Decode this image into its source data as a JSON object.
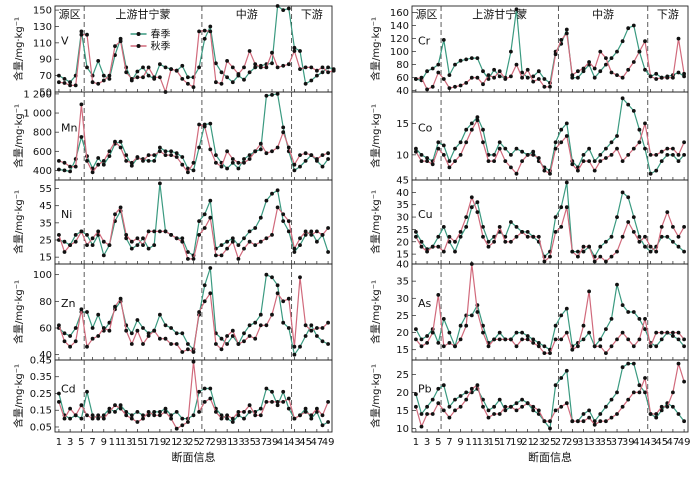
{
  "chart_data": {
    "type": "line",
    "x_ticks": [
      1,
      3,
      5,
      7,
      9,
      11,
      13,
      15,
      17,
      19,
      21,
      23,
      25,
      27,
      29,
      31,
      33,
      35,
      37,
      39,
      41,
      43,
      45,
      47,
      49
    ],
    "x_label": "断面信息",
    "regions": [
      "源区",
      "上游甘宁蒙",
      "中游",
      "下游"
    ],
    "region_dividers": [
      5.5,
      26.5,
      42.5
    ],
    "series_names": [
      "春季",
      "秋季"
    ],
    "colors": {
      "spring": "#3a9a80",
      "autumn": "#d16a7c"
    },
    "panels": [
      {
        "label": "V",
        "column": "left",
        "ylabel": "含量/mg·kg⁻¹",
        "ylim": [
          50,
          155
        ],
        "yticks": [
          50,
          70,
          90,
          110,
          130,
          150
        ],
        "spring": [
          70,
          66,
          62,
          70,
          124,
          80,
          70,
          88,
          70,
          66,
          95,
          115,
          80,
          64,
          75,
          80,
          70,
          66,
          84,
          80,
          78,
          76,
          82,
          68,
          68,
          80,
          115,
          130,
          85,
          74,
          68,
          62,
          70,
          65,
          74,
          80,
          82,
          84,
          85,
          155,
          150,
          152,
          104,
          100,
          60,
          64,
          70,
          74,
          80,
          78
        ],
        "autumn": [
          62,
          61,
          58,
          58,
          120,
          120,
          62,
          60,
          64,
          70,
          106,
          112,
          74,
          66,
          68,
          68,
          80,
          68,
          68,
          50,
          78,
          76,
          66,
          60,
          56,
          124,
          125,
          124,
          62,
          60,
          88,
          80,
          72,
          80,
          100,
          84,
          80,
          80,
          98,
          80,
          82,
          84,
          100,
          78,
          80,
          80,
          76,
          80,
          74,
          76
        ]
      },
      {
        "label": "Mn",
        "column": "left",
        "ylabel": "含量/mg·kg⁻¹",
        "ylim": [
          300,
          1220
        ],
        "yticks": [
          400,
          600,
          800,
          1000,
          1200
        ],
        "spring": [
          410,
          400,
          390,
          520,
          750,
          550,
          420,
          530,
          460,
          550,
          680,
          700,
          560,
          450,
          530,
          520,
          500,
          500,
          640,
          600,
          600,
          580,
          540,
          420,
          400,
          640,
          880,
          890,
          560,
          480,
          420,
          480,
          420,
          520,
          560,
          600,
          620,
          1180,
          1190,
          1200,
          850,
          600,
          400,
          440,
          500,
          560,
          500,
          440,
          520
        ],
        "autumn": [
          500,
          480,
          440,
          440,
          1090,
          500,
          380,
          460,
          500,
          600,
          700,
          640,
          500,
          480,
          540,
          500,
          560,
          560,
          600,
          560,
          560,
          540,
          460,
          380,
          480,
          880,
          860,
          620,
          480,
          440,
          600,
          520,
          480,
          480,
          520,
          600,
          680,
          580,
          600,
          640,
          800,
          640,
          460,
          560,
          580,
          560,
          520,
          560,
          580
        ]
      },
      {
        "label": "Ni",
        "column": "left",
        "ylabel": "含量/mg·kg⁻¹",
        "ylim": [
          11,
          60
        ],
        "yticks": [
          15,
          25,
          35,
          45,
          55
        ],
        "spring": [
          25,
          24,
          22,
          28,
          30,
          28,
          22,
          28,
          16,
          22,
          36,
          42,
          26,
          20,
          22,
          26,
          20,
          22,
          58,
          30,
          28,
          26,
          26,
          18,
          16,
          36,
          40,
          48,
          20,
          22,
          24,
          26,
          22,
          26,
          30,
          32,
          38,
          48,
          52,
          54,
          36,
          30,
          18,
          22,
          28,
          30,
          24,
          28,
          18
        ],
        "autumn": [
          28,
          18,
          22,
          24,
          30,
          22,
          26,
          30,
          24,
          22,
          40,
          44,
          28,
          24,
          26,
          22,
          30,
          30,
          30,
          30,
          28,
          26,
          24,
          14,
          14,
          28,
          32,
          38,
          16,
          16,
          20,
          24,
          14,
          20,
          24,
          22,
          24,
          26,
          28,
          44,
          40,
          36,
          20,
          26,
          30,
          28,
          30,
          28,
          32
        ]
      },
      {
        "label": "Zn",
        "column": "left",
        "ylabel": "含量/mg·kg⁻¹",
        "ylim": [
          36,
          108
        ],
        "yticks": [
          40,
          60,
          80,
          100
        ],
        "spring": [
          60,
          56,
          54,
          60,
          72,
          72,
          60,
          70,
          58,
          64,
          74,
          80,
          62,
          56,
          66,
          60,
          56,
          58,
          70,
          62,
          60,
          56,
          56,
          48,
          44,
          70,
          92,
          105,
          56,
          52,
          48,
          54,
          48,
          56,
          62,
          64,
          70,
          100,
          98,
          92,
          64,
          60,
          40,
          46,
          54,
          62,
          54,
          50,
          48
        ],
        "autumn": [
          62,
          50,
          46,
          50,
          74,
          46,
          52,
          54,
          60,
          58,
          76,
          82,
          58,
          48,
          58,
          48,
          54,
          58,
          52,
          52,
          48,
          48,
          42,
          44,
          42,
          72,
          80,
          86,
          48,
          44,
          54,
          58,
          48,
          50,
          54,
          52,
          62,
          62,
          70,
          86,
          80,
          82,
          46,
          98,
          62,
          58,
          60,
          60,
          64
        ]
      },
      {
        "label": "Cd",
        "column": "left",
        "ylabel": "含量/mg·kg⁻¹",
        "ylim": [
          0.02,
          0.45
        ],
        "yticks": [
          0.05,
          0.15,
          0.25,
          0.35,
          0.45
        ],
        "spring": [
          0.25,
          0.12,
          0.1,
          0.12,
          0.1,
          0.26,
          0.12,
          0.1,
          0.12,
          0.16,
          0.14,
          0.18,
          0.14,
          0.12,
          0.14,
          0.12,
          0.12,
          0.14,
          0.14,
          0.16,
          0.12,
          0.14,
          0.1,
          0.1,
          0.12,
          0.26,
          0.28,
          0.28,
          0.16,
          0.12,
          0.1,
          0.08,
          0.12,
          0.1,
          0.14,
          0.14,
          0.16,
          0.28,
          0.26,
          0.18,
          0.26,
          0.16,
          0.1,
          0.12,
          0.16,
          0.1,
          0.14,
          0.06,
          0.08
        ],
        "autumn": [
          0.2,
          0.1,
          0.16,
          0.12,
          0.18,
          0.12,
          0.1,
          0.12,
          0.1,
          0.14,
          0.18,
          0.16,
          0.12,
          0.1,
          0.08,
          0.1,
          0.14,
          0.12,
          0.12,
          0.14,
          0.1,
          0.04,
          0.06,
          0.08,
          0.44,
          0.14,
          0.2,
          0.22,
          0.14,
          0.1,
          0.12,
          0.1,
          0.14,
          0.14,
          0.18,
          0.12,
          0.12,
          0.2,
          0.2,
          0.2,
          0.2,
          0.22,
          0.1,
          0.12,
          0.14,
          0.12,
          0.16,
          0.12,
          0.2
        ]
      },
      {
        "label": "Cr",
        "column": "right",
        "ylabel": "含量/mg·kg⁻¹",
        "ylim": [
          38,
          170
        ],
        "yticks": [
          40,
          60,
          80,
          100,
          120,
          140,
          160
        ],
        "spring": [
          58,
          56,
          70,
          74,
          80,
          118,
          64,
          80,
          86,
          88,
          90,
          90,
          70,
          58,
          72,
          62,
          60,
          100,
          165,
          68,
          60,
          62,
          70,
          58,
          52,
          100,
          112,
          134,
          60,
          60,
          70,
          80,
          60,
          70,
          80,
          90,
          100,
          116,
          136,
          140,
          100,
          72,
          62,
          66,
          60,
          62,
          64,
          68,
          62
        ],
        "autumn": [
          58,
          60,
          42,
          46,
          68,
          58,
          44,
          46,
          48,
          52,
          60,
          60,
          50,
          64,
          60,
          70,
          58,
          62,
          80,
          60,
          72,
          54,
          58,
          46,
          46,
          96,
          118,
          128,
          64,
          70,
          74,
          84,
          74,
          100,
          90,
          68,
          64,
          60,
          72,
          84,
          100,
          116,
          62,
          58,
          60,
          60,
          60,
          120,
          66
        ]
      },
      {
        "label": "Co",
        "column": "right",
        "ylabel": "含量/mg·kg⁻¹",
        "ylim": [
          6,
          20
        ],
        "yticks": [
          10,
          15
        ],
        "spring": [
          11,
          10,
          9.5,
          9,
          12,
          11.5,
          9,
          11,
          12,
          14,
          15,
          16,
          14,
          10,
          10,
          12,
          11,
          10,
          11,
          10.5,
          10,
          10.5,
          9,
          8,
          7.5,
          12,
          14,
          15,
          9,
          8,
          10,
          11,
          9,
          10,
          11,
          12,
          13,
          19,
          18,
          17,
          14,
          11,
          7,
          7.5,
          9,
          10,
          10,
          9,
          10
        ],
        "autumn": [
          10.5,
          9,
          9,
          8.5,
          11,
          10,
          8,
          9,
          10,
          12,
          14,
          15.5,
          12,
          9,
          9,
          11,
          9,
          8,
          7,
          9,
          10,
          10,
          9.5,
          7.5,
          7,
          11,
          12,
          13,
          8.5,
          7.5,
          9,
          9,
          7.5,
          9,
          9.5,
          10,
          11,
          9,
          10,
          11,
          12,
          15,
          10,
          10,
          10.5,
          11,
          11,
          10,
          12
        ]
      },
      {
        "label": "Cu",
        "column": "right",
        "ylabel": "含量/mg·kg⁻¹",
        "ylim": [
          11,
          45
        ],
        "yticks": [
          15,
          20,
          25,
          30,
          35,
          40,
          45
        ],
        "spring": [
          24,
          20,
          17,
          18,
          22,
          26,
          20,
          16,
          22,
          26,
          34,
          36,
          26,
          20,
          22,
          24,
          22,
          28,
          26,
          24,
          24,
          22,
          20,
          14,
          16,
          30,
          34,
          44,
          16,
          16,
          16,
          18,
          14,
          18,
          20,
          22,
          30,
          40,
          38,
          30,
          22,
          18,
          16,
          18,
          22,
          22,
          20,
          18,
          16
        ],
        "autumn": [
          22,
          18,
          16,
          18,
          18,
          16,
          22,
          20,
          24,
          30,
          38,
          32,
          22,
          18,
          20,
          26,
          20,
          20,
          22,
          24,
          22,
          22,
          22,
          12,
          14,
          24,
          26,
          34,
          16,
          14,
          18,
          18,
          12,
          14,
          12,
          14,
          16,
          22,
          28,
          24,
          20,
          22,
          18,
          16,
          26,
          32,
          26,
          22,
          26
        ]
      },
      {
        "label": "As",
        "column": "right",
        "ylabel": "含量/mg·kg⁻¹",
        "ylim": [
          12,
          40
        ],
        "yticks": [
          15,
          20,
          25,
          30,
          35,
          40
        ],
        "spring": [
          21,
          18,
          19,
          21,
          17,
          24,
          20,
          16,
          22,
          25,
          25,
          28,
          22,
          17,
          18,
          20,
          18,
          18,
          20,
          20,
          19,
          18,
          17,
          16,
          15,
          22,
          25,
          27,
          16,
          17,
          18,
          20,
          16,
          18,
          21,
          24,
          34,
          28,
          26,
          26,
          24,
          21,
          17,
          16,
          18,
          20,
          19,
          18,
          16
        ],
        "autumn": [
          18,
          16,
          17,
          20,
          31,
          16,
          17,
          16,
          18,
          22,
          40,
          26,
          20,
          16,
          18,
          18,
          18,
          18,
          16,
          18,
          18,
          17,
          16,
          14,
          14,
          18,
          18,
          20,
          15,
          16,
          22,
          32,
          16,
          16,
          14,
          16,
          18,
          20,
          18,
          16,
          18,
          24,
          16,
          20,
          20,
          20,
          20,
          20,
          18
        ]
      },
      {
        "label": "Pb",
        "column": "right",
        "ylabel": "含量/mg·kg⁻¹",
        "ylim": [
          9,
          29
        ],
        "yticks": [
          10,
          15,
          20,
          25
        ],
        "spring": [
          19.5,
          14,
          16,
          18,
          21,
          22,
          16,
          18,
          19,
          20,
          20,
          21,
          18,
          15,
          16,
          18,
          15,
          16,
          17,
          18,
          17,
          15,
          14,
          12,
          10,
          22,
          24,
          26,
          12,
          12,
          14,
          15,
          12,
          14,
          16,
          18,
          20,
          27,
          28,
          28,
          22,
          20,
          14,
          13,
          15,
          17,
          16,
          14,
          12
        ],
        "autumn": [
          16,
          10.5,
          14,
          14,
          17,
          15,
          13,
          15,
          16,
          18,
          21,
          22,
          16,
          13,
          14,
          14,
          16,
          16,
          15,
          16,
          17,
          16,
          15,
          12,
          12,
          15,
          16,
          17,
          12,
          12,
          12,
          13,
          11,
          12,
          12,
          13,
          14,
          16,
          18,
          20,
          20,
          24,
          14,
          14,
          16,
          16,
          20,
          28,
          23
        ]
      }
    ]
  }
}
